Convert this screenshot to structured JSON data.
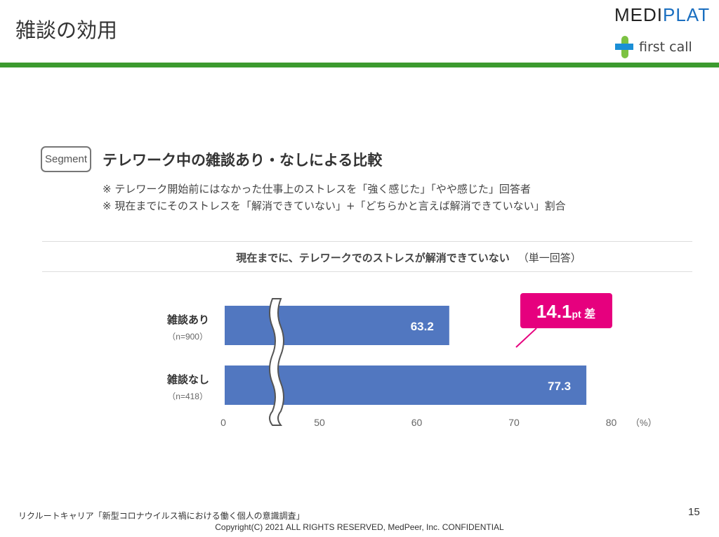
{
  "header": {
    "title": "雑談の効用",
    "logo_main_a": "MEDI",
    "logo_main_b": "PLAT",
    "logo_sub": "first call",
    "accent": "#3c9a2f"
  },
  "segment": {
    "badge": "Segment",
    "heading": "テレワーク中の雑談あり・なしによる比較",
    "notes": [
      "※ テレワーク開始前にはなかった仕事上のストレスを「強く感じた」「やや感じた」回答者",
      "※ 現在までにそのストレスを「解消できていない」+「どちらかと言えば解消できていない」割合"
    ]
  },
  "chart_data": {
    "type": "bar",
    "orientation": "horizontal",
    "title": "現在までに、テレワークでのストレスが解消できていない",
    "title_note": "（単一回答）",
    "categories": [
      "雑談あり",
      "雑談なし"
    ],
    "sample_sizes": [
      "（n=900）",
      "（n=418）"
    ],
    "values": [
      63.2,
      77.3
    ],
    "value_labels": [
      "63.2",
      "77.3"
    ],
    "x_ticks": [
      "0",
      "50",
      "60",
      "70",
      "80"
    ],
    "xlim": [
      0,
      80
    ],
    "axis_break": [
      0,
      50
    ],
    "unit": "（%）",
    "bar_color": "#5177c0",
    "annotation": {
      "value": "14.1",
      "unit": "pt",
      "suffix": "差",
      "color": "#e6007e"
    }
  },
  "footer": {
    "source": "リクルートキャリア「新型コロナウイルス禍における働く個人の意識調査」",
    "copyright": "Copyright(C) 2021 ALL RIGHTS RESERVED, MedPeer, Inc. CONFIDENTIAL",
    "page": "15"
  }
}
